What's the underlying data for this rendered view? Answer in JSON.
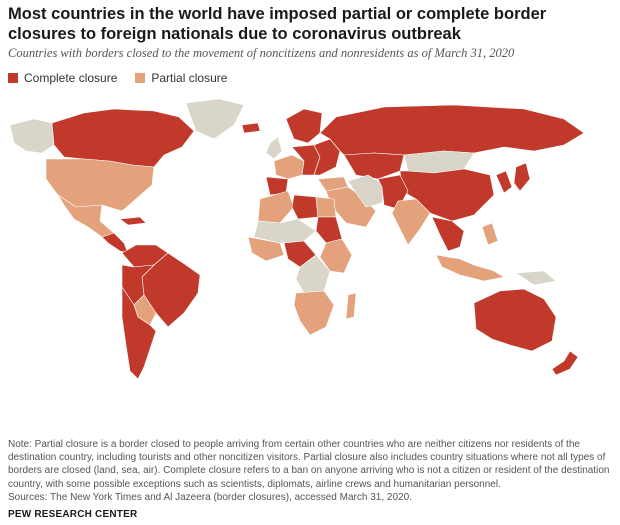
{
  "title": "Most countries in the world have imposed partial or complete border closures to foreign nationals due to coronavirus outbreak",
  "subtitle": "Countries with borders closed to the movement of noncitizens and nonresidents as of March 31, 2020",
  "legend": {
    "complete": {
      "label": "Complete closure",
      "color": "#c0392b"
    },
    "partial": {
      "label": "Partial closure",
      "color": "#e3a27c"
    }
  },
  "colors": {
    "complete": "#c0392b",
    "partial": "#e3a27c",
    "none": "#d9d5c8"
  },
  "map": {
    "regions": [
      {
        "name": "alaska",
        "status": "none"
      },
      {
        "name": "canada",
        "status": "complete"
      },
      {
        "name": "greenland",
        "status": "none"
      },
      {
        "name": "united-states",
        "status": "partial"
      },
      {
        "name": "mexico",
        "status": "partial"
      },
      {
        "name": "central-america",
        "status": "complete"
      },
      {
        "name": "cuba",
        "status": "complete"
      },
      {
        "name": "colombia-venezuela",
        "status": "complete"
      },
      {
        "name": "brazil",
        "status": "complete"
      },
      {
        "name": "peru-bolivia",
        "status": "complete"
      },
      {
        "name": "paraguay",
        "status": "partial"
      },
      {
        "name": "argentina-chile",
        "status": "complete"
      },
      {
        "name": "iceland",
        "status": "complete"
      },
      {
        "name": "uk-ireland",
        "status": "none"
      },
      {
        "name": "scandinavia",
        "status": "complete"
      },
      {
        "name": "western-europe",
        "status": "partial"
      },
      {
        "name": "iberia",
        "status": "complete"
      },
      {
        "name": "central-europe",
        "status": "complete"
      },
      {
        "name": "eastern-europe",
        "status": "complete"
      },
      {
        "name": "russia",
        "status": "complete"
      },
      {
        "name": "kazakhstan",
        "status": "complete"
      },
      {
        "name": "mongolia",
        "status": "none"
      },
      {
        "name": "china",
        "status": "complete"
      },
      {
        "name": "korea-japan",
        "status": "complete"
      },
      {
        "name": "turkey",
        "status": "partial"
      },
      {
        "name": "middle-east",
        "status": "partial"
      },
      {
        "name": "iran",
        "status": "none"
      },
      {
        "name": "afghanistan-pakistan",
        "status": "complete"
      },
      {
        "name": "india",
        "status": "partial"
      },
      {
        "name": "southeast-asia",
        "status": "complete"
      },
      {
        "name": "indonesia",
        "status": "partial"
      },
      {
        "name": "philippines",
        "status": "partial"
      },
      {
        "name": "new-guinea",
        "status": "none"
      },
      {
        "name": "australia",
        "status": "complete"
      },
      {
        "name": "new-zealand",
        "status": "complete"
      },
      {
        "name": "north-africa-west",
        "status": "partial"
      },
      {
        "name": "libya",
        "status": "complete"
      },
      {
        "name": "egypt",
        "status": "partial"
      },
      {
        "name": "sudan",
        "status": "complete"
      },
      {
        "name": "sahel",
        "status": "none"
      },
      {
        "name": "west-africa",
        "status": "partial"
      },
      {
        "name": "central-africa",
        "status": "complete"
      },
      {
        "name": "east-africa",
        "status": "partial"
      },
      {
        "name": "congo-drc",
        "status": "none"
      },
      {
        "name": "southern-africa",
        "status": "partial"
      },
      {
        "name": "madagascar",
        "status": "partial"
      }
    ]
  },
  "note": "Note: Partial closure is a border closed to people arriving from certain other countries who are neither citizens nor residents of the destination country, including tourists and other noncitizen visitors. Partial closure also includes country situations where not all types of borders are closed (land, sea, air). Complete closure refers to a ban on anyone arriving who is not a citizen or resident of the destination country, with some possible exceptions such as scientists, diplomats, airline crews and humanitarian personnel.",
  "source": "Sources: The New York Times and Al Jazeera (border closures), accessed March 31, 2020.",
  "credit": "PEW RESEARCH CENTER"
}
